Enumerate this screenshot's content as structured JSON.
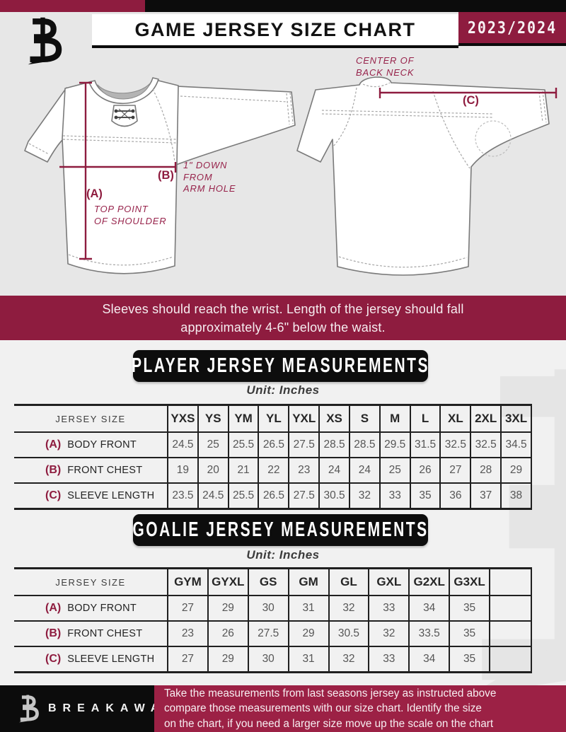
{
  "header": {
    "brand_logo": "breakaway-b-monogram",
    "title": "GAME JERSEY SIZE CHART",
    "season": "2023/2024"
  },
  "diagram": {
    "front_jersey": {
      "label_a": "(A)",
      "label_a_caption": "TOP POINT\nOF SHOULDER",
      "label_b": "(B)",
      "label_b_caption": "1\" DOWN\nFROM\nARM HOLE"
    },
    "back_jersey": {
      "caption": "CENTER OF\nBACK NECK",
      "label_c": "(C)"
    }
  },
  "notice": {
    "line1": "Sleeves should reach the wrist. Length of the jersey should fall",
    "line2": "approximately 4-6\" below the waist."
  },
  "player_section": {
    "title": "PLAYER JERSEY MEASUREMENTS",
    "unit_label": "Unit: Inches",
    "table": {
      "corner_label": "JERSEY SIZE",
      "sizes": [
        "YXS",
        "YS",
        "YM",
        "YL",
        "YXL",
        "XS",
        "S",
        "M",
        "L",
        "XL",
        "2XL",
        "3XL"
      ],
      "trailing_empty_column": false,
      "rows": [
        {
          "key": "(A)",
          "label": "BODY FRONT",
          "values": [
            "24.5",
            "25",
            "25.5",
            "26.5",
            "27.5",
            "28.5",
            "28.5",
            "29.5",
            "31.5",
            "32.5",
            "32.5",
            "34.5"
          ]
        },
        {
          "key": "(B)",
          "label": "FRONT CHEST",
          "values": [
            "19",
            "20",
            "21",
            "22",
            "23",
            "24",
            "24",
            "25",
            "26",
            "27",
            "28",
            "29"
          ]
        },
        {
          "key": "(C)",
          "label": "SLEEVE LENGTH",
          "values": [
            "23.5",
            "24.5",
            "25.5",
            "26.5",
            "27.5",
            "30.5",
            "32",
            "33",
            "35",
            "36",
            "37",
            "38"
          ]
        }
      ]
    }
  },
  "goalie_section": {
    "title": "GOALIE JERSEY MEASUREMENTS",
    "unit_label": "Unit: Inches",
    "table": {
      "corner_label": "JERSEY SIZE",
      "sizes": [
        "GYM",
        "GYXL",
        "GS",
        "GM",
        "GL",
        "GXL",
        "G2XL",
        "G3XL"
      ],
      "trailing_empty_column": true,
      "rows": [
        {
          "key": "(A)",
          "label": "BODY FRONT",
          "values": [
            "27",
            "29",
            "30",
            "31",
            "32",
            "33",
            "34",
            "35"
          ]
        },
        {
          "key": "(B)",
          "label": "FRONT CHEST",
          "values": [
            "23",
            "26",
            "27.5",
            "29",
            "30.5",
            "32",
            "33.5",
            "35"
          ]
        },
        {
          "key": "(C)",
          "label": "SLEEVE LENGTH",
          "values": [
            "27",
            "29",
            "30",
            "31",
            "32",
            "33",
            "34",
            "35"
          ]
        }
      ]
    }
  },
  "footer": {
    "brand_name": "BREAKAWAY",
    "line1": "Take the measurements from last seasons jersey as instructed above",
    "line2": "compare those measurements  with our size chart. Identify the size",
    "line3": "on the chart, if you need a larger size move up the scale on the chart"
  },
  "colors": {
    "maroon": "#8e1c3f",
    "footer_maroon": "#9c2145",
    "black": "#0c0c0c",
    "top_background": "#e7e7e7",
    "lower_background": "#f1f1f1",
    "annotation": "#97234b",
    "table_line": "#202020"
  }
}
